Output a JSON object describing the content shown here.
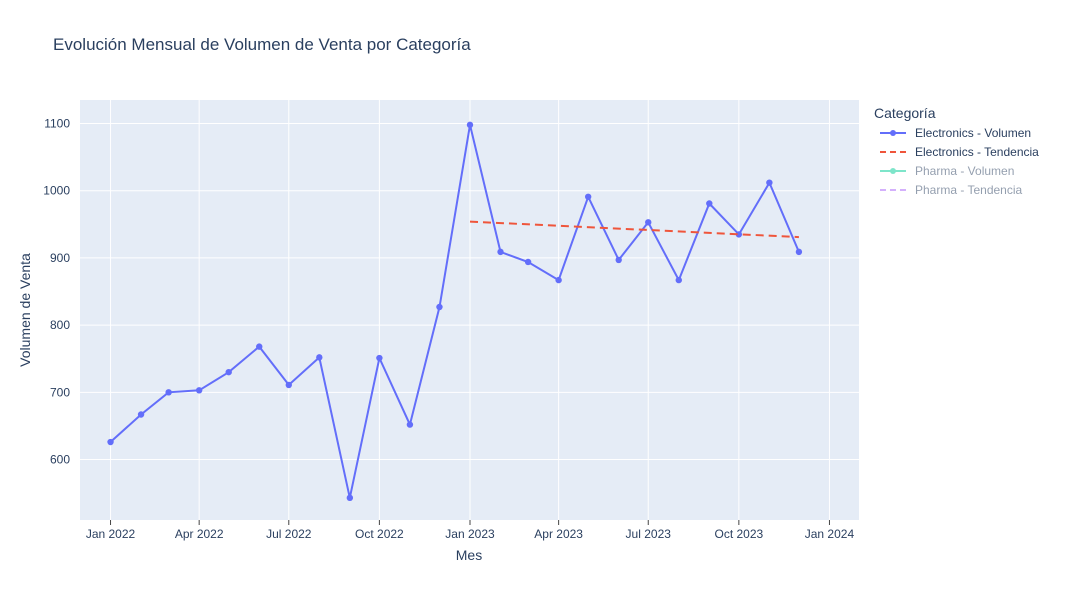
{
  "chart_data": {
    "type": "line",
    "title": "Evolución Mensual de Volumen de Venta por Categoría",
    "xlabel": "Mes",
    "ylabel": "Volumen de Venta",
    "x_ticks": [
      "Jan 2022",
      "Apr 2022",
      "Jul 2022",
      "Oct 2022",
      "Jan 2023",
      "Apr 2023",
      "Jul 2023",
      "Oct 2023",
      "Jan 2024"
    ],
    "y_ticks": [
      600,
      700,
      800,
      900,
      1000,
      1100
    ],
    "ylim": [
      510,
      1135
    ],
    "xlim": [
      "2021-12-01",
      "2024-01-31"
    ],
    "grid": true,
    "legend": {
      "title": "Categoría",
      "placement": "right"
    },
    "series": [
      {
        "name": "Electronics - Volumen",
        "color": "#636efa",
        "style": "lines+markers",
        "visible": true,
        "x": [
          "2022-01-01",
          "2022-02-01",
          "2022-03-01",
          "2022-04-01",
          "2022-05-01",
          "2022-06-01",
          "2022-07-01",
          "2022-08-01",
          "2022-09-01",
          "2022-10-01",
          "2022-11-01",
          "2022-12-01",
          "2023-01-01",
          "2023-02-01",
          "2023-03-01",
          "2023-04-01",
          "2023-05-01",
          "2023-06-01",
          "2023-07-01",
          "2023-08-01",
          "2023-09-01",
          "2023-10-01",
          "2023-11-01",
          "2023-12-01"
        ],
        "y": [
          626,
          667,
          700,
          703,
          730,
          768,
          711,
          752,
          543,
          751,
          652,
          827,
          1098,
          909,
          894,
          867,
          991,
          897,
          953,
          867,
          981,
          935,
          1012,
          909
        ]
      },
      {
        "name": "Electronics - Tendencia",
        "color": "#ef553b",
        "style": "dash",
        "visible": true,
        "x": [
          "2023-01-01",
          "2023-12-01"
        ],
        "y": [
          954,
          931
        ]
      },
      {
        "name": "Pharma - Volumen",
        "color": "#00cc96",
        "style": "lines+markers",
        "visible": false,
        "x": [],
        "y": []
      },
      {
        "name": "Pharma - Tendencia",
        "color": "#ab63fa",
        "style": "dash",
        "visible": false,
        "x": [],
        "y": []
      }
    ]
  }
}
